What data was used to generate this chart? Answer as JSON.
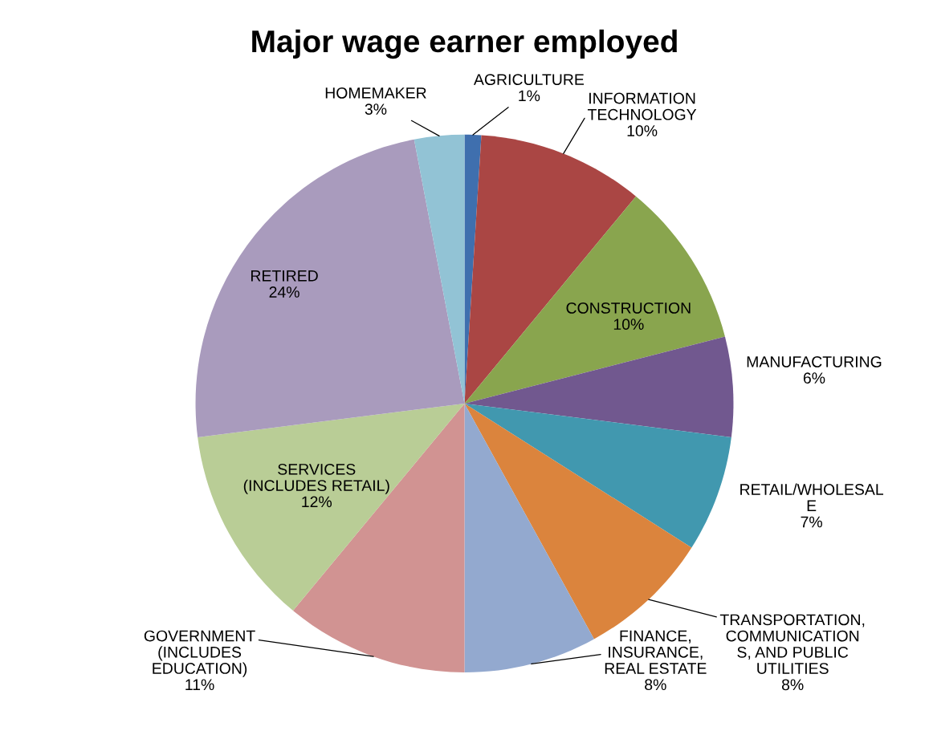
{
  "chart_data": {
    "type": "pie",
    "title": "Major wage earner employed",
    "categories": [
      "AGRICULTURE",
      "INFORMATION\nTECHNOLOGY",
      "CONSTRUCTION",
      "MANUFACTURING",
      "RETAIL/WHOLESAL\nE",
      "TRANSPORTATION,\nCOMMUNICATION\nS, AND PUBLIC\nUTILITIES",
      "FINANCE,\nINSURANCE,\nREAL ESTATE",
      "GOVERNMENT\n(INCLUDES\nEDUCATION)",
      "SERVICES\n(INCLUDES RETAIL)",
      "RETIRED",
      "HOMEMAKER"
    ],
    "values": [
      1,
      10,
      10,
      6,
      7,
      8,
      8,
      11,
      12,
      24,
      3
    ],
    "value_labels": [
      "1%",
      "10%",
      "10%",
      "6%",
      "7%",
      "8%",
      "8%",
      "11%",
      "12%",
      "24%",
      "3%"
    ],
    "colors": [
      "#3f6fae",
      "#aa4644",
      "#89a54e",
      "#71588f",
      "#4198af",
      "#db843d",
      "#93a9cf",
      "#d19392",
      "#b9cd96",
      "#a99bbd",
      "#92c3d5"
    ],
    "legend": false
  }
}
